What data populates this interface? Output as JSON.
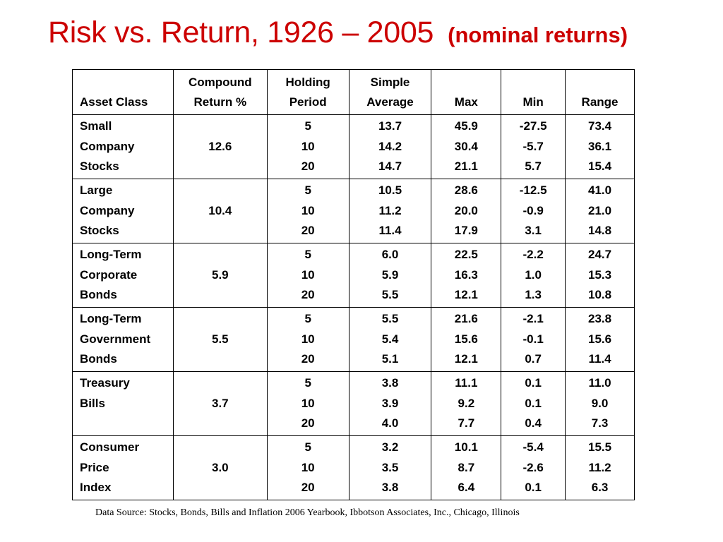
{
  "title": {
    "main": "Risk vs. Return, 1926 – 2005",
    "sub": "(nominal returns)"
  },
  "colors": {
    "title": "#cc0000",
    "text": "#000000",
    "border": "#000000",
    "background": "#ffffff"
  },
  "table": {
    "headers": [
      {
        "line1": "",
        "line2": "Asset Class"
      },
      {
        "line1": "Compound",
        "line2": "Return  %"
      },
      {
        "line1": "Holding",
        "line2": "Period"
      },
      {
        "line1": "Simple",
        "line2": "Average"
      },
      {
        "line1": "",
        "line2": "Max"
      },
      {
        "line1": "",
        "line2": "Min"
      },
      {
        "line1": "",
        "line2": "Range"
      }
    ],
    "rows": [
      {
        "asset": [
          "Small",
          "Company",
          "Stocks"
        ],
        "compound": "12.6",
        "period": [
          "5",
          "10",
          "20"
        ],
        "average": [
          "13.7",
          "14.2",
          "14.7"
        ],
        "max": [
          "45.9",
          "30.4",
          "21.1"
        ],
        "min": [
          "-27.5",
          "-5.7",
          "5.7"
        ],
        "range": [
          "73.4",
          "36.1",
          "15.4"
        ]
      },
      {
        "asset": [
          "Large",
          "Company",
          "Stocks"
        ],
        "compound": "10.4",
        "period": [
          "5",
          "10",
          "20"
        ],
        "average": [
          "10.5",
          "11.2",
          "11.4"
        ],
        "max": [
          "28.6",
          "20.0",
          "17.9"
        ],
        "min": [
          "-12.5",
          "-0.9",
          "3.1"
        ],
        "range": [
          "41.0",
          "21.0",
          "14.8"
        ]
      },
      {
        "asset": [
          "Long-Term",
          "Corporate",
          "Bonds"
        ],
        "compound": "5.9",
        "period": [
          "5",
          "10",
          "20"
        ],
        "average": [
          "6.0",
          "5.9",
          "5.5"
        ],
        "max": [
          "22.5",
          "16.3",
          "12.1"
        ],
        "min": [
          "-2.2",
          "1.0",
          "1.3"
        ],
        "range": [
          "24.7",
          "15.3",
          "10.8"
        ]
      },
      {
        "asset": [
          "Long-Term",
          "Government",
          "Bonds"
        ],
        "compound": "5.5",
        "period": [
          "5",
          "10",
          "20"
        ],
        "average": [
          "5.5",
          "5.4",
          "5.1"
        ],
        "max": [
          "21.6",
          "15.6",
          "12.1"
        ],
        "min": [
          "-2.1",
          "-0.1",
          "0.7"
        ],
        "range": [
          "23.8",
          "15.6",
          "11.4"
        ]
      },
      {
        "asset": [
          "Treasury",
          "Bills",
          ""
        ],
        "compound": "3.7",
        "period": [
          "5",
          "10",
          "20"
        ],
        "average": [
          "3.8",
          "3.9",
          "4.0"
        ],
        "max": [
          "11.1",
          "9.2",
          "7.7"
        ],
        "min": [
          "0.1",
          "0.1",
          "0.4"
        ],
        "range": [
          "11.0",
          "9.0",
          "7.3"
        ]
      },
      {
        "asset": [
          "Consumer",
          "Price",
          "Index"
        ],
        "compound": "3.0",
        "period": [
          "5",
          "10",
          "20"
        ],
        "average": [
          "3.2",
          "3.5",
          "3.8"
        ],
        "max": [
          "10.1",
          "8.7",
          "6.4"
        ],
        "min": [
          "-5.4",
          "-2.6",
          "0.1"
        ],
        "range": [
          "15.5",
          "11.2",
          "6.3"
        ]
      }
    ]
  },
  "source": "Data Source:  Stocks, Bonds, Bills and Inflation 2006 Yearbook, Ibbotson Associates, Inc., Chicago, Illinois"
}
